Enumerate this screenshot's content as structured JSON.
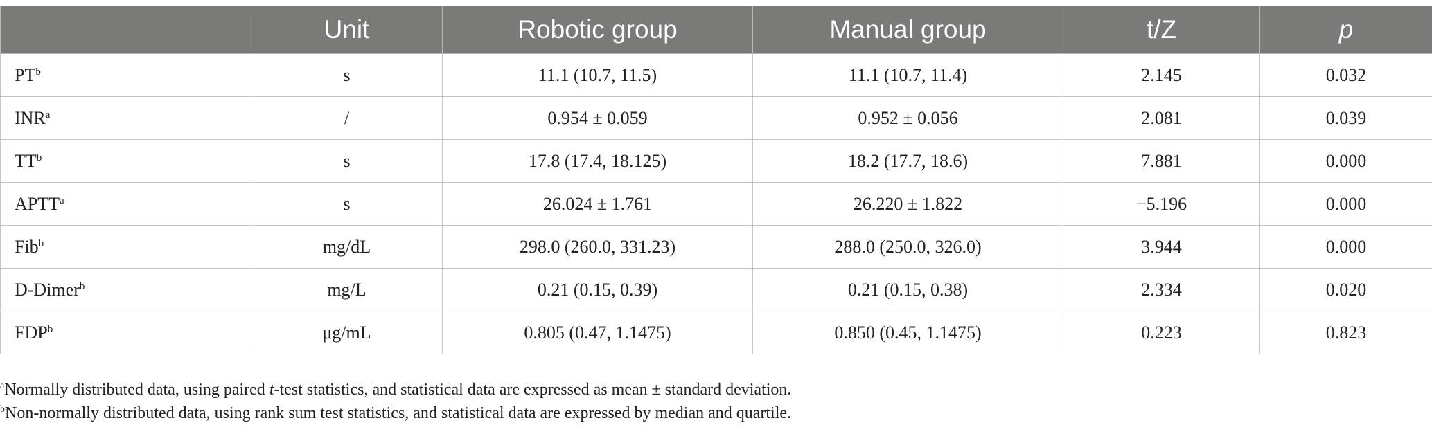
{
  "table": {
    "headers": [
      "",
      "Unit",
      "Robotic group",
      "Manual group",
      "t/Z",
      "p"
    ],
    "rows": [
      {
        "name": "PT",
        "sup": "b",
        "unit": "s",
        "robotic": "11.1 (10.7, 11.5)",
        "manual": "11.1 (10.7, 11.4)",
        "tz": "2.145",
        "p": "0.032"
      },
      {
        "name": "INR",
        "sup": "a",
        "unit": "/",
        "robotic": "0.954 ± 0.059",
        "manual": "0.952 ± 0.056",
        "tz": "2.081",
        "p": "0.039"
      },
      {
        "name": "TT",
        "sup": "b",
        "unit": "s",
        "robotic": "17.8 (17.4, 18.125)",
        "manual": "18.2 (17.7, 18.6)",
        "tz": "7.881",
        "p": "0.000"
      },
      {
        "name": "APTT",
        "sup": "a",
        "unit": "s",
        "robotic": "26.024 ± 1.761",
        "manual": "26.220 ± 1.822",
        "tz": "−5.196",
        "p": "0.000"
      },
      {
        "name": "Fib",
        "sup": "b",
        "unit": "mg/dL",
        "robotic": "298.0 (260.0, 331.23)",
        "manual": "288.0 (250.0, 326.0)",
        "tz": "3.944",
        "p": "0.000"
      },
      {
        "name": "D-Dimer",
        "sup": "b",
        "unit": "mg/L",
        "robotic": "0.21 (0.15, 0.39)",
        "manual": "0.21 (0.15, 0.38)",
        "tz": "2.334",
        "p": "0.020"
      },
      {
        "name": "FDP",
        "sup": "b",
        "unit": "μg/mL",
        "robotic": "0.805 (0.47, 1.1475)",
        "manual": "0.850 (0.45, 1.1475)",
        "tz": "0.223",
        "p": "0.823"
      }
    ]
  },
  "footnotes": {
    "a": {
      "mark": "a",
      "text_before": "Normally distributed data, using paired ",
      "italic": "t",
      "text_after": "-test statistics, and statistical data are expressed as mean ± standard deviation."
    },
    "b": {
      "mark": "b",
      "text": "Non-normally distributed data, using rank sum test statistics, and statistical data are expressed by median and quartile."
    }
  },
  "colors": {
    "header_bg": "#7a7a78",
    "header_text": "#ffffff",
    "grid": "#c4c4c4",
    "body_text": "#222222"
  }
}
